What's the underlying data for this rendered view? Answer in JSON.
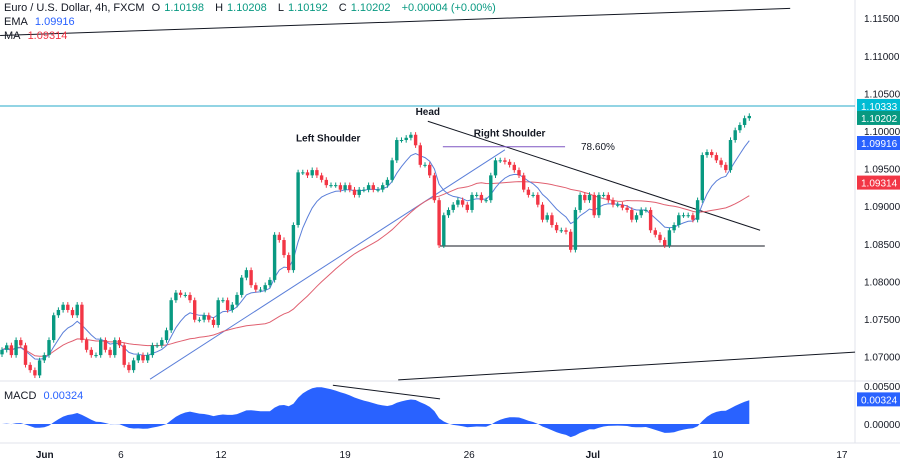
{
  "header": {
    "symbol": "Euro / U.S. Dollar, 4h, FXCM",
    "open_label": "O",
    "open": "1.10198",
    "high_label": "H",
    "high": "1.10208",
    "low_label": "L",
    "low": "1.10192",
    "close_label": "C",
    "close": "1.10202",
    "change": "+0.00004 (+0.00%)"
  },
  "indicators": [
    {
      "name": "EMA",
      "value": "1.09916",
      "color": "#2962ff"
    },
    {
      "name": "MA",
      "value": "1.09314",
      "color": "#f23645"
    }
  ],
  "macd": {
    "name": "MACD",
    "value": "0.00324",
    "color": "#2962ff"
  },
  "colors": {
    "up": "#089981",
    "down": "#f23645",
    "ema": "#5b7fd9",
    "ma": "#e06070",
    "macd_fill": "#2962ff",
    "cyan_line": "#26a9c9",
    "fib": "#7e57c2"
  },
  "chart_data": {
    "type": "candlestick",
    "closes": [
      1.0709,
      1.0715,
      1.0702,
      1.0722,
      1.0715,
      1.0689,
      1.0682,
      1.0675,
      1.0695,
      1.0702,
      1.0722,
      1.0755,
      1.0762,
      1.0769,
      1.0762,
      1.0755,
      1.0769,
      1.0722,
      1.0709,
      1.0702,
      1.0702,
      1.0722,
      1.0709,
      1.0702,
      1.0722,
      1.0715,
      1.0689,
      1.0682,
      1.0695,
      1.0702,
      1.0695,
      1.0702,
      1.0715,
      1.0715,
      1.0722,
      1.0735,
      1.0775,
      1.0785,
      1.0782,
      1.0782,
      1.0775,
      1.0749,
      1.0749,
      1.0755,
      1.0749,
      1.0742,
      1.0775,
      1.0775,
      1.0762,
      1.0769,
      1.0782,
      1.0805,
      1.0815,
      1.0795,
      1.0789,
      1.0789,
      1.0795,
      1.0802,
      1.0862,
      1.0855,
      1.0835,
      1.0815,
      1.0875,
      1.0945,
      1.0945,
      1.0941,
      1.0948,
      1.0941,
      1.0935,
      1.0928,
      1.0928,
      1.0928,
      1.0922,
      1.0928,
      1.0922,
      1.0915,
      1.0922,
      1.0922,
      1.0928,
      1.0922,
      1.0922,
      1.0928,
      1.0935,
      1.0961,
      1.0988,
      1.0988,
      1.0991,
      1.0995,
      1.0981,
      1.0955,
      1.0955,
      1.0941,
      1.0908,
      1.0848,
      1.0888,
      1.0895,
      1.0902,
      1.0908,
      1.0902,
      1.0895,
      1.0915,
      1.0915,
      1.0908,
      1.0908,
      1.0941,
      1.0961,
      1.0961,
      1.0959,
      1.0955,
      1.0948,
      1.0941,
      1.0922,
      1.0915,
      1.0915,
      1.0902,
      1.0882,
      1.0888,
      1.0875,
      1.0868,
      1.0868,
      1.0866,
      1.0842,
      1.0895,
      1.0915,
      1.0908,
      1.0915,
      1.0888,
      1.0915,
      1.0915,
      1.0908,
      1.0902,
      1.0902,
      1.0898,
      1.0895,
      1.0882,
      1.0888,
      1.0895,
      1.0895,
      1.0868,
      1.0862,
      1.0855,
      1.0848,
      1.0868,
      1.0875,
      1.0888,
      1.0888,
      1.0888,
      1.0882,
      1.0908,
      1.0968,
      1.0972,
      1.0968,
      1.0961,
      1.0955,
      1.0948,
      1.0988,
      1.1001,
      1.1008,
      1.1017,
      1.102
    ],
    "price_axis": {
      "ticks": [
        "1.11500",
        "1.11000",
        "1.10500",
        "1.10000",
        "1.09500",
        "1.09000",
        "1.08500",
        "1.08000",
        "1.07500",
        "1.07000"
      ]
    },
    "price_tags": [
      {
        "value": "1.10333",
        "color": "#00bcd4"
      },
      {
        "value": "1.10202",
        "color": "#089981"
      },
      {
        "value": "1.09916",
        "color": "#2962ff"
      },
      {
        "value": "1.09314",
        "color": "#f23645"
      }
    ],
    "macd_axis": {
      "ticks": [
        "0.00500",
        "0.00000"
      ]
    },
    "macd_tag": {
      "value": "0.00324",
      "color": "#2962ff"
    },
    "time_axis": [
      {
        "label": "Jun",
        "bar": 9.1,
        "bold": true
      },
      {
        "label": "6",
        "bar": 25.3
      },
      {
        "label": "12",
        "bar": 46.6
      },
      {
        "label": "19",
        "bar": 73
      },
      {
        "label": "26",
        "bar": 99.4
      },
      {
        "label": "Jul",
        "bar": 125.7,
        "bold": true
      },
      {
        "label": "10",
        "bar": 152.3
      },
      {
        "label": "17",
        "bar": 178.7
      }
    ],
    "drawings": [
      {
        "name": "upper-channel-line",
        "from": [
          -0.4,
          1.1127
        ],
        "to": [
          167.7,
          1.1163
        ],
        "color": "#131722"
      },
      {
        "name": "neckline-downtrend",
        "from": [
          90.6,
          1.1013
        ],
        "to": [
          161.3,
          1.0868
        ],
        "color": "#131722"
      },
      {
        "name": "ascending-trendline",
        "from": [
          31.5,
          1.067
        ],
        "to": [
          107,
          1.0975
        ],
        "color": "#5b7fd9"
      },
      {
        "name": "fib-level-line",
        "from": [
          93.8,
          1.0979
        ],
        "to": [
          119.8,
          1.0979
        ],
        "color": "#7e57c2"
      },
      {
        "name": "support-line",
        "from": [
          93.2,
          1.0847
        ],
        "to": [
          162.3,
          1.0847
        ],
        "color": "#131722"
      },
      {
        "name": "lower-channel-line",
        "from": [
          84.3,
          1.0669
        ],
        "to": [
          181.5,
          1.0706
        ],
        "color": "#131722"
      }
    ],
    "horizontal_line": {
      "price": 1.10333
    },
    "macd_drawing": {
      "from": [
        70.4,
        0.0051
      ],
      "to": [
        93.2,
        0.0033
      ]
    },
    "annotations": [
      {
        "text": "Head",
        "bar": 90.6,
        "price": 1.1025
      },
      {
        "text": "Left Shoulder",
        "bar": 69.4,
        "price": 1.099
      },
      {
        "text": "Right Shoulder",
        "bar": 108,
        "price": 1.0997
      },
      {
        "text": "78.60%",
        "bar": 126.8,
        "price": 1.0979,
        "color": "#7e57c2"
      }
    ]
  }
}
